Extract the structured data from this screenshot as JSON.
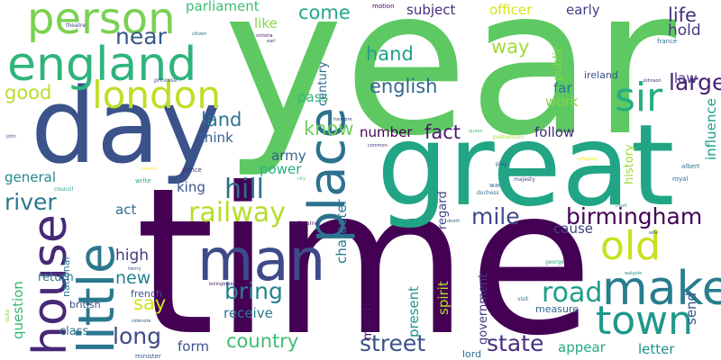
{
  "words": [
    {
      "text": "year",
      "color": "#5ec962"
    },
    {
      "text": "time",
      "color": "#440154"
    },
    {
      "text": "great",
      "color": "#21a585"
    },
    {
      "text": "day",
      "color": "#3b528b"
    },
    {
      "text": "man",
      "color": "#3e4a89"
    },
    {
      "text": "place",
      "color": "#2c728e"
    },
    {
      "text": "house",
      "color": "#482878"
    },
    {
      "text": "little",
      "color": "#2a788e"
    },
    {
      "text": "england",
      "color": "#2fb47c"
    },
    {
      "text": "person",
      "color": "#7ad151"
    },
    {
      "text": "london",
      "color": "#bddf26"
    },
    {
      "text": "make",
      "color": "#287c8e"
    },
    {
      "text": "town",
      "color": "#1f988b"
    },
    {
      "text": "old",
      "color": "#c8e020"
    },
    {
      "text": "sir",
      "color": "#25ac82"
    },
    {
      "text": "birmingham",
      "color": "#440154"
    },
    {
      "text": "mile",
      "color": "#3e4a89"
    },
    {
      "text": "railway",
      "color": "#b5de2b"
    },
    {
      "text": "hill",
      "color": "#2d708e"
    },
    {
      "text": "road",
      "color": "#1f9e89"
    },
    {
      "text": "country",
      "color": "#3fbc73"
    },
    {
      "text": "street",
      "color": "#3b528b"
    },
    {
      "text": "state",
      "color": "#46327e"
    },
    {
      "text": "long",
      "color": "#3e4989"
    },
    {
      "text": "bring",
      "color": "#26828e"
    },
    {
      "text": "river",
      "color": "#2a788e"
    },
    {
      "text": "large",
      "color": "#482475"
    },
    {
      "text": "english",
      "color": "#31688e"
    },
    {
      "text": "near",
      "color": "#38588c"
    },
    {
      "text": "come",
      "color": "#22a884"
    },
    {
      "text": "good",
      "color": "#b8de29"
    },
    {
      "text": "know",
      "color": "#6ccd5a"
    },
    {
      "text": "hand",
      "color": "#1fa187"
    },
    {
      "text": "way",
      "color": "#a2da37"
    },
    {
      "text": "land",
      "color": "#2a768e"
    },
    {
      "text": "parliament",
      "color": "#3dbc74"
    },
    {
      "text": "officer",
      "color": "#d8e219"
    },
    {
      "text": "subject",
      "color": "#472c7a"
    },
    {
      "text": "early",
      "color": "#424086"
    },
    {
      "text": "life",
      "color": "#46317e"
    },
    {
      "text": "hold",
      "color": "#453781"
    },
    {
      "text": "like",
      "color": "#86d549"
    },
    {
      "text": "follow",
      "color": "#472a7a"
    },
    {
      "text": "think",
      "color": "#355e8d"
    },
    {
      "text": "number",
      "color": "#440154"
    },
    {
      "text": "fact",
      "color": "#48186a"
    },
    {
      "text": "army",
      "color": "#33638d"
    },
    {
      "text": "power",
      "color": "#29af7f"
    },
    {
      "text": "king",
      "color": "#3a548c"
    },
    {
      "text": "general",
      "color": "#24868e"
    },
    {
      "text": "act",
      "color": "#2e6e8e"
    },
    {
      "text": "high",
      "color": "#443a83"
    },
    {
      "text": "new",
      "color": "#27808e"
    },
    {
      "text": "say",
      "color": "#d2e21b"
    },
    {
      "text": "receive",
      "color": "#2a788e"
    },
    {
      "text": "form",
      "color": "#3b528b"
    },
    {
      "text": "law",
      "color": "#453882"
    },
    {
      "text": "far",
      "color": "#2a778e"
    },
    {
      "text": "work",
      "color": "#86d549"
    },
    {
      "text": "cause",
      "color": "#404387"
    },
    {
      "text": "pass",
      "color": "#35b779"
    },
    {
      "text": "letter",
      "color": "#20928c"
    },
    {
      "text": "appear",
      "color": "#24aa83"
    },
    {
      "text": "send",
      "color": "#3a548c"
    },
    {
      "text": "measure",
      "color": "#31688e"
    },
    {
      "text": "lord",
      "color": "#2e6d8e"
    },
    {
      "text": "class",
      "color": "#2d718e"
    },
    {
      "text": "return",
      "color": "#2a768e"
    },
    {
      "text": "british",
      "color": "#3e4a89"
    },
    {
      "text": "french",
      "color": "#3a548c"
    },
    {
      "text": "government",
      "color": "#443983"
    },
    {
      "text": "present",
      "color": "#1f958b"
    },
    {
      "text": "spirit",
      "color": "#b5de2b"
    },
    {
      "text": "march",
      "color": "#471063"
    },
    {
      "text": "character",
      "color": "#2a788e"
    },
    {
      "text": "regard",
      "color": "#3e4989"
    },
    {
      "text": "century",
      "color": "#31688e"
    },
    {
      "text": "public",
      "color": "#86d549"
    },
    {
      "text": "history",
      "color": "#9bd93c"
    },
    {
      "text": "influence",
      "color": "#1fa088"
    },
    {
      "text": "question",
      "color": "#38b977"
    },
    {
      "text": "national",
      "color": "#2a788e"
    },
    {
      "text": "ireland",
      "color": "#3b528b"
    },
    {
      "text": "motion",
      "color": "#46085c"
    },
    {
      "text": "theatre",
      "color": "#414487"
    },
    {
      "text": "citizen",
      "color": "#2e6e8e"
    },
    {
      "text": "victoria",
      "color": "#471365"
    },
    {
      "text": "earl",
      "color": "#453781"
    },
    {
      "text": "france",
      "color": "#2c728e"
    },
    {
      "text": "johnson",
      "color": "#482173"
    },
    {
      "text": "princess",
      "color": "#39568c"
    },
    {
      "text": "john",
      "color": "#3e4a89"
    },
    {
      "text": "cavalry",
      "color": "#fde725"
    },
    {
      "text": "prince",
      "color": "#472d7b"
    },
    {
      "text": "write",
      "color": "#27ad81"
    },
    {
      "text": "council",
      "color": "#1f9a8a"
    },
    {
      "text": "city",
      "color": "#4ac16d"
    },
    {
      "text": "war",
      "color": "#2e6e8e"
    },
    {
      "text": "duchess",
      "color": "#2f6c8e"
    },
    {
      "text": "majesty",
      "color": "#3f4889"
    },
    {
      "text": "royal",
      "color": "#2e6e8e"
    },
    {
      "text": "albert",
      "color": "#2c728e"
    },
    {
      "text": "company",
      "color": "#e5e419"
    },
    {
      "text": "play",
      "color": "#3d4e8a"
    },
    {
      "text": "george",
      "color": "#20a386"
    },
    {
      "text": "melbourne",
      "color": "#471365"
    },
    {
      "text": "bolingbroke",
      "color": "#481f70"
    },
    {
      "text": "minister",
      "color": "#3a548c"
    },
    {
      "text": "duke",
      "color": "#8fd744"
    },
    {
      "text": "visit",
      "color": "#2c718e"
    },
    {
      "text": "court",
      "color": "#23888e"
    },
    {
      "text": "walpole",
      "color": "#1f958b"
    },
    {
      "text": "aldermen",
      "color": "#2e6e8e"
    },
    {
      "text": "palmerston",
      "color": "#a8db34"
    },
    {
      "text": "common",
      "color": "#46337f"
    },
    {
      "text": "queen",
      "color": "#46c06f"
    },
    {
      "text": "death",
      "color": "#2f6c8e"
    },
    {
      "text": "sidenote",
      "color": "#31688e"
    },
    {
      "text": "henry",
      "color": "#3b528b"
    },
    {
      "text": "foxmore",
      "color": "#3e4a89"
    },
    {
      "text": "wife",
      "color": "#365d8d"
    }
  ]
}
